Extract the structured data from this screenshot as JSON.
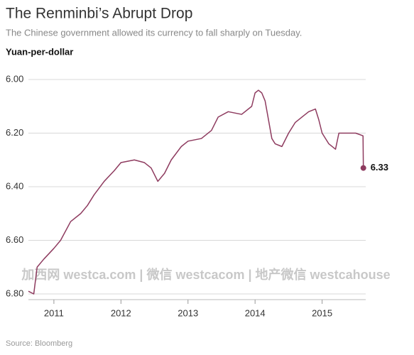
{
  "chart_data": {
    "type": "line",
    "title": "The Renminbi’s Abrupt Drop",
    "subtitle": "The Chinese government allowed its currency to fall sharply on Tuesday.",
    "y_label": "Yuan-per-dollar",
    "source": "Source: Bloomberg",
    "watermark": "加西网 westca.com | 微信 westcacom | 地产微信 westcahouse",
    "x": [
      2010.62,
      2010.7,
      2010.75,
      2010.85,
      2011.0,
      2011.1,
      2011.25,
      2011.4,
      2011.5,
      2011.6,
      2011.75,
      2011.9,
      2012.0,
      2012.2,
      2012.35,
      2012.45,
      2012.55,
      2012.65,
      2012.75,
      2012.9,
      2013.0,
      2013.2,
      2013.35,
      2013.45,
      2013.6,
      2013.8,
      2013.95,
      2014.0,
      2014.05,
      2014.1,
      2014.15,
      2014.2,
      2014.25,
      2014.3,
      2014.4,
      2014.5,
      2014.6,
      2014.7,
      2014.8,
      2014.9,
      2014.95,
      2015.0,
      2015.1,
      2015.2,
      2015.25,
      2015.4,
      2015.5,
      2015.61,
      2015.615
    ],
    "series": [
      {
        "name": "Yuan-per-dollar",
        "color": "#8e3b5f",
        "values": [
          6.79,
          6.8,
          6.7,
          6.67,
          6.63,
          6.6,
          6.53,
          6.5,
          6.47,
          6.43,
          6.38,
          6.34,
          6.31,
          6.3,
          6.31,
          6.33,
          6.38,
          6.35,
          6.3,
          6.25,
          6.23,
          6.22,
          6.19,
          6.14,
          6.12,
          6.13,
          6.1,
          6.05,
          6.04,
          6.05,
          6.08,
          6.15,
          6.22,
          6.24,
          6.25,
          6.2,
          6.16,
          6.14,
          6.12,
          6.11,
          6.15,
          6.2,
          6.24,
          6.26,
          6.2,
          6.2,
          6.2,
          6.21,
          6.33
        ]
      }
    ],
    "xlim": [
      2010.62,
      2015.65
    ],
    "xticks": [
      2011,
      2012,
      2013,
      2014,
      2015
    ],
    "ylim": [
      6.0,
      6.8
    ],
    "yticks": [
      {
        "value": 6.0,
        "label": "6.00"
      },
      {
        "value": 6.2,
        "label": "6.20"
      },
      {
        "value": 6.4,
        "label": "6.40"
      },
      {
        "value": 6.6,
        "label": "6.60"
      },
      {
        "value": 6.8,
        "label": "6.80"
      }
    ],
    "y_inverted": true,
    "grid": true
  }
}
